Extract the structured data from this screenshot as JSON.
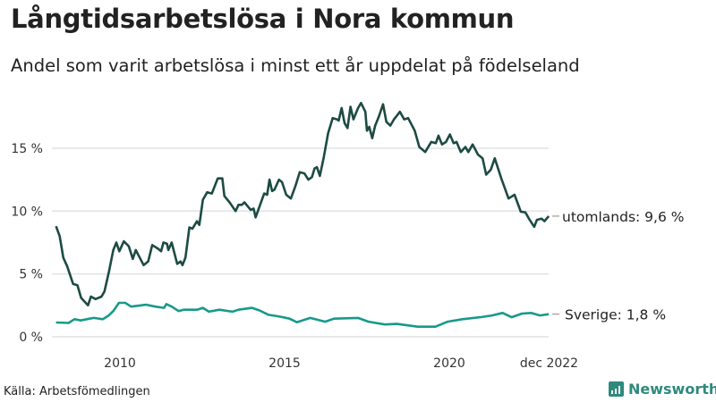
{
  "title": "Långtidsarbetslösa i Nora kommun",
  "subtitle": "Andel som varit arbetslösa i minst ett år uppdelat på födelseland",
  "source": "Källa: Arbetsfömedlingen",
  "logo": "Newsworthy",
  "chart_data": {
    "type": "line",
    "title": "Långtidsarbetslösa i Nora kommun",
    "xlabel": "",
    "ylabel": "",
    "ylim": [
      0,
      19
    ],
    "grid": true,
    "x_ticks": [
      {
        "value": 2010,
        "label": "2010"
      },
      {
        "value": 2015,
        "label": "2015"
      },
      {
        "value": 2020,
        "label": "2020"
      },
      {
        "value": 2022.92,
        "label": "dec 2022"
      }
    ],
    "y_ticks": [
      {
        "value": 0,
        "label": "0 %"
      },
      {
        "value": 5,
        "label": "5 %"
      },
      {
        "value": 10,
        "label": "10 %"
      },
      {
        "value": 15,
        "label": "15 %"
      }
    ],
    "colors": {
      "utomlands": "#1d4b43",
      "sverige": "#18998a",
      "grid": "#e2e2e6"
    },
    "series": [
      {
        "name": "utomlands",
        "end_label": "utomlands: 9,6 %",
        "x": [
          2008.06,
          2008.17,
          2008.28,
          2008.4,
          2008.58,
          2008.71,
          2008.82,
          2009.03,
          2009.12,
          2009.26,
          2009.44,
          2009.53,
          2009.66,
          2009.8,
          2009.89,
          2009.98,
          2010.12,
          2010.27,
          2010.39,
          2010.48,
          2010.72,
          2010.86,
          2010.98,
          2011.16,
          2011.25,
          2011.32,
          2011.43,
          2011.47,
          2011.57,
          2011.74,
          2011.84,
          2011.9,
          2011.99,
          2012.11,
          2012.2,
          2012.34,
          2012.41,
          2012.52,
          2012.65,
          2012.79,
          2012.97,
          2013.11,
          2013.17,
          2013.33,
          2013.51,
          2013.6,
          2013.7,
          2013.78,
          2013.97,
          2014.06,
          2014.12,
          2014.38,
          2014.47,
          2014.54,
          2014.62,
          2014.69,
          2014.83,
          2014.92,
          2015.05,
          2015.19,
          2015.33,
          2015.46,
          2015.6,
          2015.72,
          2015.83,
          2015.91,
          2015.98,
          2016.07,
          2016.19,
          2016.32,
          2016.46,
          2016.59,
          2016.64,
          2016.73,
          2016.82,
          2016.91,
          2017.0,
          2017.09,
          2017.23,
          2017.32,
          2017.45,
          2017.5,
          2017.57,
          2017.66,
          2017.75,
          2017.86,
          2017.99,
          2018.09,
          2018.21,
          2018.32,
          2018.41,
          2018.5,
          2018.63,
          2018.75,
          2018.95,
          2019.09,
          2019.27,
          2019.45,
          2019.59,
          2019.67,
          2019.78,
          2019.9,
          2020.02,
          2020.13,
          2020.22,
          2020.35,
          2020.49,
          2020.58,
          2020.71,
          2020.87,
          2021.01,
          2021.12,
          2021.26,
          2021.38,
          2021.58,
          2021.8,
          2021.98,
          2022.17,
          2022.31,
          2022.44,
          2022.58,
          2022.66,
          2022.8,
          2022.89,
          2023.02
        ],
        "y": [
          8.8,
          8.0,
          6.3,
          5.6,
          4.2,
          4.1,
          3.1,
          2.5,
          3.2,
          3.0,
          3.2,
          3.6,
          5.1,
          6.9,
          7.5,
          6.8,
          7.6,
          7.2,
          6.2,
          6.9,
          5.7,
          6.0,
          7.3,
          7.0,
          6.8,
          7.5,
          7.4,
          6.9,
          7.5,
          5.8,
          6.0,
          5.7,
          6.3,
          8.7,
          8.6,
          9.2,
          8.9,
          10.9,
          11.5,
          11.4,
          12.6,
          12.6,
          11.2,
          10.7,
          10.0,
          10.5,
          10.5,
          10.7,
          10.1,
          10.2,
          9.5,
          11.4,
          11.3,
          12.5,
          11.6,
          11.7,
          12.5,
          12.3,
          11.3,
          11.0,
          12.0,
          13.1,
          13.0,
          12.5,
          12.7,
          13.4,
          13.5,
          12.8,
          14.3,
          16.2,
          17.4,
          17.3,
          17.2,
          18.2,
          17.0,
          16.6,
          18.3,
          17.3,
          18.2,
          18.6,
          17.9,
          16.4,
          16.7,
          15.8,
          16.8,
          17.5,
          18.5,
          17.1,
          16.8,
          17.3,
          17.6,
          17.9,
          17.3,
          17.4,
          16.4,
          15.1,
          14.7,
          15.5,
          15.4,
          16.0,
          15.3,
          15.5,
          16.1,
          15.4,
          15.5,
          14.7,
          15.1,
          14.7,
          15.3,
          14.5,
          14.2,
          12.9,
          13.3,
          14.2,
          12.6,
          11.0,
          11.3,
          9.95,
          9.9,
          9.3,
          8.75,
          9.3,
          9.4,
          9.2,
          9.6
        ]
      },
      {
        "name": "Sverige",
        "end_label": "Sverige: 1,8 %",
        "x": [
          2008.06,
          2008.44,
          2008.62,
          2008.81,
          2009.08,
          2009.21,
          2009.48,
          2009.66,
          2009.8,
          2009.97,
          2010.16,
          2010.34,
          2010.8,
          2011.07,
          2011.34,
          2011.41,
          2011.57,
          2011.78,
          2011.93,
          2012.34,
          2012.52,
          2012.7,
          2013.02,
          2013.42,
          2013.6,
          2014.01,
          2014.24,
          2014.51,
          2014.87,
          2015.15,
          2015.37,
          2015.78,
          2016.23,
          2016.5,
          2017.23,
          2017.55,
          2018.04,
          2018.41,
          2019.04,
          2019.58,
          2019.95,
          2020.4,
          2020.94,
          2021.3,
          2021.62,
          2021.89,
          2022.21,
          2022.48,
          2022.75,
          2023.02
        ],
        "y": [
          1.14,
          1.1,
          1.4,
          1.3,
          1.44,
          1.5,
          1.4,
          1.7,
          2.05,
          2.7,
          2.7,
          2.4,
          2.55,
          2.4,
          2.3,
          2.6,
          2.4,
          2.05,
          2.15,
          2.15,
          2.3,
          2.0,
          2.15,
          2.0,
          2.15,
          2.3,
          2.1,
          1.75,
          1.6,
          1.44,
          1.16,
          1.5,
          1.2,
          1.44,
          1.5,
          1.2,
          0.98,
          1.02,
          0.8,
          0.8,
          1.2,
          1.4,
          1.56,
          1.7,
          1.9,
          1.56,
          1.85,
          1.9,
          1.7,
          1.8
        ]
      }
    ]
  }
}
